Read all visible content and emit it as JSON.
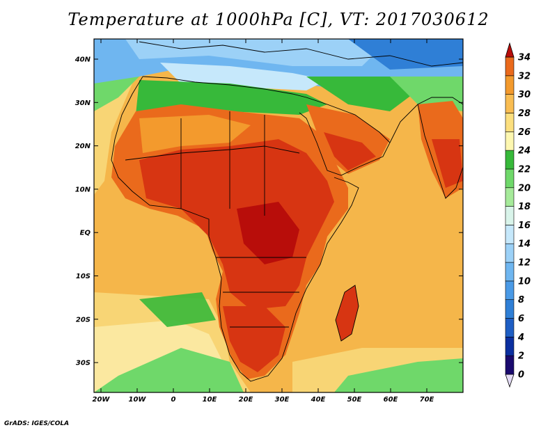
{
  "title": "Temperature at 1000hPa [C], VT: 2017030612",
  "credit": "GrADS: IGES/COLA",
  "lat_labels": [
    "40N",
    "30N",
    "20N",
    "10N",
    "EQ",
    "10S",
    "20S",
    "30S"
  ],
  "lon_labels": [
    "20W",
    "10W",
    "0",
    "10E",
    "20E",
    "30E",
    "40E",
    "50E",
    "60E",
    "70E"
  ],
  "colorbar": {
    "levels": [
      "0",
      "2",
      "4",
      "6",
      "8",
      "10",
      "12",
      "14",
      "16",
      "18",
      "20",
      "22",
      "24",
      "26",
      "28",
      "30",
      "32",
      "34"
    ],
    "colors": [
      "#1a0a6e",
      "#0b2fa0",
      "#1e5ec4",
      "#2f7fd6",
      "#4a9ae6",
      "#6fb6f0",
      "#9cd1f7",
      "#c6e8fb",
      "#d9f4ea",
      "#a6ea9a",
      "#6fd86a",
      "#37b93a",
      "#fdf7b0",
      "#fcdf7e",
      "#f9bd52",
      "#f39a2d",
      "#ea6a1c",
      "#d73512",
      "#b80d0a"
    ]
  }
}
